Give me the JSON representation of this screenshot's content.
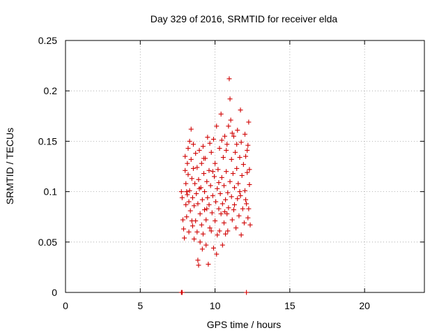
{
  "chart_data": {
    "type": "scatter",
    "title": "Day 329 of 2016, SRMTID for receiver elda",
    "xlabel": "GPS time / hours",
    "ylabel": "SRMTID / TECUs",
    "xlim": [
      0,
      24
    ],
    "ylim": [
      0,
      0.25
    ],
    "xticks": [
      0,
      5,
      10,
      15,
      20
    ],
    "yticks": [
      0,
      0.05,
      0.1,
      0.15,
      0.2,
      0.25
    ],
    "xtick_labels": [
      "0",
      "5",
      "10",
      "15",
      "20"
    ],
    "ytick_labels": [
      "0",
      "0.05",
      "0.1",
      "0.15",
      "0.2",
      "0.25"
    ],
    "grid": true,
    "marker": "+",
    "marker_color": "#d00000",
    "series": [
      {
        "name": "SRMTID",
        "points": [
          [
            7.75,
            0.0
          ],
          [
            7.78,
            0.0
          ],
          [
            7.8,
            0.0
          ],
          [
            12.1,
            0.0
          ],
          [
            7.75,
            0.1
          ],
          [
            7.8,
            0.094
          ],
          [
            7.85,
            0.072
          ],
          [
            7.9,
            0.063
          ],
          [
            7.95,
            0.054
          ],
          [
            8.0,
            0.135
          ],
          [
            8.0,
            0.121
          ],
          [
            8.05,
            0.108
          ],
          [
            8.05,
            0.087
          ],
          [
            8.1,
            0.075
          ],
          [
            8.1,
            0.1
          ],
          [
            8.15,
            0.128
          ],
          [
            8.2,
            0.143
          ],
          [
            8.2,
            0.117
          ],
          [
            8.25,
            0.09
          ],
          [
            8.3,
            0.15
          ],
          [
            8.3,
            0.101
          ],
          [
            8.35,
            0.081
          ],
          [
            8.4,
            0.162
          ],
          [
            8.4,
            0.132
          ],
          [
            8.45,
            0.113
          ],
          [
            8.5,
            0.094
          ],
          [
            8.5,
            0.066
          ],
          [
            8.55,
            0.123
          ],
          [
            8.6,
            0.086
          ],
          [
            8.6,
            0.053
          ],
          [
            8.65,
            0.108
          ],
          [
            8.7,
            0.138
          ],
          [
            8.7,
            0.071
          ],
          [
            8.75,
            0.098
          ],
          [
            8.8,
            0.124
          ],
          [
            8.8,
            0.06
          ],
          [
            8.85,
            0.032
          ],
          [
            8.85,
            0.088
          ],
          [
            8.9,
            0.112
          ],
          [
            8.9,
            0.027
          ],
          [
            8.95,
            0.141
          ],
          [
            9.0,
            0.078
          ],
          [
            9.0,
            0.05
          ],
          [
            9.05,
            0.104
          ],
          [
            9.1,
            0.128
          ],
          [
            9.1,
            0.067
          ],
          [
            9.15,
            0.092
          ],
          [
            9.2,
            0.145
          ],
          [
            9.2,
            0.058
          ],
          [
            9.25,
            0.118
          ],
          [
            9.3,
            0.082
          ],
          [
            9.3,
            0.1
          ],
          [
            9.35,
            0.133
          ],
          [
            9.4,
            0.072
          ],
          [
            9.4,
            0.047
          ],
          [
            9.45,
            0.11
          ],
          [
            9.5,
            0.154
          ],
          [
            9.5,
            0.094
          ],
          [
            9.55,
            0.028
          ],
          [
            9.6,
            0.087
          ],
          [
            9.6,
            0.121
          ],
          [
            9.65,
            0.064
          ],
          [
            9.7,
            0.106
          ],
          [
            9.75,
            0.139
          ],
          [
            9.8,
            0.079
          ],
          [
            9.85,
            0.096
          ],
          [
            9.9,
            0.152
          ],
          [
            9.9,
            0.044
          ],
          [
            9.95,
            0.115
          ],
          [
            10.0,
            0.071
          ],
          [
            10.0,
            0.128
          ],
          [
            10.05,
            0.09
          ],
          [
            10.1,
            0.165
          ],
          [
            10.1,
            0.038
          ],
          [
            10.15,
            0.103
          ],
          [
            10.2,
            0.122
          ],
          [
            10.25,
            0.083
          ],
          [
            10.3,
            0.143
          ],
          [
            10.3,
            0.061
          ],
          [
            10.35,
            0.098
          ],
          [
            10.4,
            0.177
          ],
          [
            10.4,
            0.078
          ],
          [
            10.45,
            0.114
          ],
          [
            10.5,
            0.047
          ],
          [
            10.5,
            0.088
          ],
          [
            10.55,
            0.134
          ],
          [
            10.6,
            0.069
          ],
          [
            10.6,
            0.106
          ],
          [
            10.65,
            0.155
          ],
          [
            10.7,
            0.092
          ],
          [
            10.7,
            0.058
          ],
          [
            10.75,
            0.12
          ],
          [
            10.8,
            0.078
          ],
          [
            10.8,
            0.147
          ],
          [
            10.85,
            0.099
          ],
          [
            10.9,
            0.165
          ],
          [
            10.9,
            0.084
          ],
          [
            10.95,
            0.212
          ],
          [
            11.0,
            0.192
          ],
          [
            11.0,
            0.11
          ],
          [
            11.05,
            0.171
          ],
          [
            11.1,
            0.095
          ],
          [
            11.1,
            0.132
          ],
          [
            11.15,
            0.072
          ],
          [
            11.2,
            0.118
          ],
          [
            11.25,
            0.155
          ],
          [
            11.3,
            0.087
          ],
          [
            11.3,
            0.104
          ],
          [
            11.35,
            0.139
          ],
          [
            11.4,
            0.064
          ],
          [
            11.45,
            0.123
          ],
          [
            11.5,
            0.093
          ],
          [
            11.5,
            0.161
          ],
          [
            11.55,
            0.108
          ],
          [
            11.6,
            0.076
          ],
          [
            11.65,
            0.134
          ],
          [
            11.7,
            0.181
          ],
          [
            11.7,
            0.096
          ],
          [
            11.75,
            0.149
          ],
          [
            11.8,
            0.116
          ],
          [
            11.85,
            0.083
          ],
          [
            11.9,
            0.127
          ],
          [
            11.95,
            0.069
          ],
          [
            12.0,
            0.157
          ],
          [
            12.0,
            0.101
          ],
          [
            12.05,
            0.135
          ],
          [
            12.1,
            0.088
          ],
          [
            12.15,
            0.119
          ],
          [
            12.2,
            0.146
          ],
          [
            12.2,
            0.074
          ],
          [
            12.25,
            0.169
          ],
          [
            12.3,
            0.107
          ],
          [
            12.3,
            0.122
          ],
          [
            12.35,
            0.067
          ],
          [
            8.15,
            0.097
          ],
          [
            8.45,
            0.071
          ],
          [
            8.95,
            0.103
          ],
          [
            9.25,
            0.133
          ],
          [
            9.75,
            0.061
          ],
          [
            10.25,
            0.109
          ],
          [
            10.75,
            0.141
          ],
          [
            11.25,
            0.082
          ],
          [
            11.75,
            0.057
          ],
          [
            12.15,
            0.141
          ],
          [
            8.55,
            0.147
          ],
          [
            9.15,
            0.043
          ],
          [
            9.65,
            0.148
          ],
          [
            10.15,
            0.057
          ],
          [
            10.65,
            0.08
          ],
          [
            11.15,
            0.158
          ],
          [
            11.65,
            0.1
          ],
          [
            12.05,
            0.092
          ],
          [
            8.25,
            0.06
          ],
          [
            9.45,
            0.083
          ],
          [
            10.45,
            0.151
          ],
          [
            11.45,
            0.147
          ],
          [
            12.25,
            0.083
          ],
          [
            10.85,
            0.061
          ],
          [
            9.85,
            0.12
          ]
        ]
      }
    ]
  }
}
